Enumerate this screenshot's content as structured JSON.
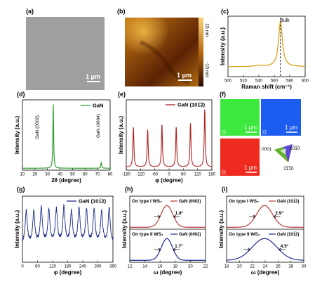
{
  "panels": {
    "a": {
      "letter": "(a)",
      "scalebar": "1 μm"
    },
    "b": {
      "letter": "(b)",
      "scalebar": "1 μm",
      "colorbar_top": "15 nm",
      "colorbar_bottom": "-15 nm",
      "colors": [
        "#3a1200",
        "#7a3a08",
        "#c4780e",
        "#f2c658"
      ]
    },
    "c": {
      "letter": "(c)",
      "annotation": "Bulk"
    },
    "d": {
      "letter": "(d)",
      "annotation_0002": "GaN (0002)",
      "annotation_0004": "GaN (0004)"
    },
    "e": {
      "letter": "(e)"
    },
    "f": {
      "letter": "(f)",
      "scalebar": "1 μm",
      "map_colors": [
        "#3ee83e",
        "#1d5cf0",
        "#ef2b1f"
      ],
      "legend": {
        "corner_0001": "0001",
        "corner_10-10": "10̅1̅0",
        "corner_2-1-10": "2̅1̅1̅0"
      }
    },
    "g": {
      "letter": "(g)"
    },
    "h": {
      "letter": "(h)"
    },
    "i": {
      "letter": "(i)"
    }
  },
  "chart_data": [
    {
      "id": "c",
      "type": "line",
      "xlabel": "Raman shift (cm⁻¹)",
      "ylabel": "Intensity (a.u.)",
      "xlim": [
        500,
        600
      ],
      "ylim": [
        0,
        1.1
      ],
      "xticks": [
        500,
        520,
        540,
        560,
        580,
        600
      ],
      "color": "#d9a21a",
      "vline": 568,
      "peak": {
        "center": 568,
        "width": 3,
        "height": 1.0,
        "baseline": 0.18
      }
    },
    {
      "id": "d",
      "type": "line",
      "xlabel": "2θ (degree)",
      "ylabel": "Intensity (a.u.)",
      "xlim": [
        10,
        80
      ],
      "ylim": [
        0,
        1.1
      ],
      "xticks": [
        10,
        20,
        30,
        40,
        50,
        60,
        70,
        80
      ],
      "color": "#2f9e2f",
      "legend": [
        {
          "name": "GaN"
        }
      ],
      "peaks": [
        {
          "center": 34.6,
          "width": 0.35,
          "height": 1.0
        },
        {
          "center": 72.9,
          "width": 0.4,
          "height": 0.09
        }
      ]
    },
    {
      "id": "e",
      "type": "line",
      "xlabel": "φ (degree)",
      "ylabel": "Intensity (a.u.)",
      "xlim": [
        -180,
        180
      ],
      "ylim": [
        0,
        1.1
      ],
      "xticks": [
        -180,
        -120,
        -60,
        0,
        60,
        120,
        180
      ],
      "color": "#b12020",
      "legend": [
        {
          "name": "GaN (101̅2)"
        }
      ],
      "peak_positions": [
        -150,
        -90,
        -30,
        30,
        90,
        150
      ],
      "peak_heights": [
        0.62,
        0.58,
        0.66,
        0.62,
        0.68,
        0.9
      ],
      "peak_width": 2.5
    },
    {
      "id": "g",
      "type": "line",
      "xlabel": "φ (degree)",
      "ylabel": "Intensity (a.u.)",
      "xlim": [
        0,
        360
      ],
      "ylim": [
        0,
        1.1
      ],
      "xticks": [
        0,
        60,
        120,
        180,
        240,
        300,
        360
      ],
      "color": "#1c2a8c",
      "legend": [
        {
          "name": "GaN (101̅2)"
        }
      ],
      "peak_positions": [
        15,
        45,
        75,
        105,
        135,
        165,
        195,
        225,
        255,
        285,
        315,
        345
      ],
      "peak_heights": [
        0.72,
        0.7,
        0.78,
        0.72,
        0.74,
        0.8,
        0.7,
        0.76,
        0.72,
        0.74,
        0.7,
        0.78
      ],
      "peak_width": 5,
      "baseline": 0.3
    },
    {
      "id": "h",
      "type": "line",
      "xlabel": "ω (degree)",
      "ylabel": "Intensity (a.u.)",
      "xlim": [
        12,
        22
      ],
      "xticks": [
        12,
        14,
        16,
        18,
        20,
        22
      ],
      "subplots": [
        {
          "label": "On type I WS₂",
          "legend": "GaN (0002)",
          "color": "#b83a3a",
          "center": 16.9,
          "fwhm": 1.8,
          "fwhm_label": "1.8°"
        },
        {
          "label": "On type II WS₂",
          "legend": "GaN (0002)",
          "color": "#1c2a8c",
          "center": 16.9,
          "fwhm": 1.7,
          "fwhm_label": "1.7°"
        }
      ]
    },
    {
      "id": "i",
      "type": "line",
      "xlabel": "ω (degree)",
      "ylabel": "Intensity (a.u.)",
      "xlim": [
        18,
        30
      ],
      "xticks": [
        18,
        20,
        22,
        24,
        26,
        28,
        30
      ],
      "subplots": [
        {
          "label": "On type I WS₂",
          "legend": "GaN (101̅2)",
          "color": "#b83a3a",
          "center": 23.9,
          "fwhm": 2.9,
          "fwhm_label": "2.9°"
        },
        {
          "label": "On type II WS₂",
          "legend": "GaN (101̅2)",
          "color": "#1c2a8c",
          "center": 23.9,
          "fwhm": 4.5,
          "fwhm_label": "4.5°"
        }
      ]
    }
  ]
}
